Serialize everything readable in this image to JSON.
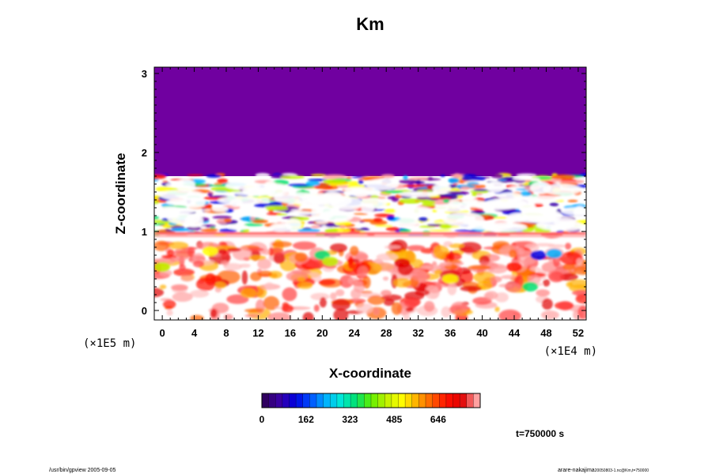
{
  "chart_data": {
    "type": "heatmap",
    "title": "Km",
    "xlabel": "X-coordinate",
    "ylabel": "Z-coordinate",
    "x_ticks": [
      "0",
      "4",
      "8",
      "12",
      "16",
      "20",
      "24",
      "28",
      "32",
      "36",
      "40",
      "44",
      "48",
      "52"
    ],
    "y_ticks": [
      "0",
      "1",
      "2",
      "3"
    ],
    "xlim": [
      -1,
      53
    ],
    "ylim": [
      -0.12,
      3.08
    ],
    "x_units": "(×1E4 m)",
    "y_units": "(×1E5 m)",
    "colorbar": {
      "ticks": [
        "0",
        "162",
        "323",
        "485",
        "646"
      ],
      "range": [
        0,
        800
      ],
      "colors": [
        "#300060",
        "#3a00a8",
        "#0000e0",
        "#0050ff",
        "#00b0ff",
        "#00e8d8",
        "#00e070",
        "#60f000",
        "#c0f000",
        "#ffff00",
        "#ffb000",
        "#ff6000",
        "#ff1000",
        "#e00000",
        "#ffa0a0"
      ]
    },
    "background_value_above_z": {
      "z": 1.7,
      "color": "#7000a0"
    },
    "grid": false,
    "time_label": "t=750000 s"
  },
  "footer": {
    "left": "/usr/bin/gpview 2005-09-05",
    "right": "arare-nakajima",
    "right_small": "20050803-1.nc@Km,t=750000"
  }
}
